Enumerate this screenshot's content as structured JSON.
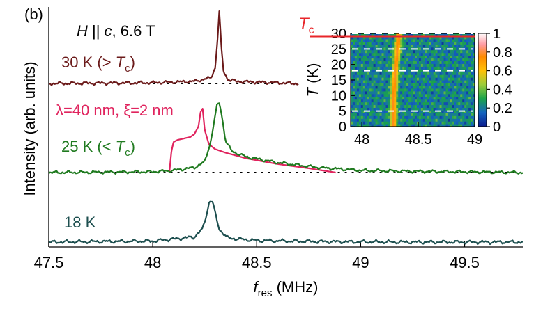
{
  "panel_label": "(b)",
  "field_note": "H || c, 6.6 T",
  "colors": {
    "trace_30K": "#6b1a1a",
    "trace_25K": "#1f7a1f",
    "trace_18K": "#1d4f4f",
    "simulation": "#e0245e",
    "tc_line": "#e8262a",
    "baseline": "#000000"
  },
  "chart_data": [
    {
      "type": "line",
      "xlabel": "f_res (MHz)",
      "xlabel_main": "f",
      "xlabel_sub": "res",
      "xlabel_unit": " (MHz)",
      "ylabel": "Intensity (arb. units)",
      "xlim": [
        47.5,
        49.78
      ],
      "xticks": [
        "47.5",
        "48",
        "48.5",
        "49",
        "49.5"
      ],
      "xtick_values": [
        47.5,
        48.0,
        48.5,
        49.0,
        49.5
      ],
      "grid": false,
      "series": [
        {
          "name": "30 K (> Tc)",
          "label_text": "30 K (> ",
          "label_sym": "T",
          "label_sub": "c",
          "label_end": ")",
          "color_key": "trace_30K",
          "x": [
            47.5,
            48.0,
            48.2,
            48.28,
            48.3,
            48.31,
            48.32,
            48.33,
            48.34,
            48.36,
            48.4,
            48.6,
            48.7
          ],
          "y": [
            0.0,
            0.01,
            0.03,
            0.08,
            0.22,
            0.55,
            1.0,
            0.5,
            0.18,
            0.06,
            0.03,
            0.01,
            0.0
          ]
        },
        {
          "name": "λ=40 nm, ξ=2 nm",
          "label_text": "λ=40 nm, ξ=2 nm",
          "color_key": "simulation",
          "x": [
            48.08,
            48.09,
            48.1,
            48.12,
            48.15,
            48.18,
            48.2,
            48.22,
            48.23,
            48.24,
            48.25,
            48.27,
            48.3,
            48.35,
            48.45,
            48.6,
            48.75,
            48.88
          ],
          "y": [
            0.0,
            0.3,
            0.43,
            0.46,
            0.48,
            0.5,
            0.54,
            0.65,
            0.85,
            0.9,
            0.6,
            0.4,
            0.33,
            0.28,
            0.2,
            0.12,
            0.06,
            0.0
          ]
        },
        {
          "name": "25 K (< Tc)",
          "label_text": "25 K (< ",
          "label_sym": "T",
          "label_sub": "c",
          "label_end": ")",
          "color_key": "trace_25K",
          "x": [
            47.5,
            48.0,
            48.1,
            48.2,
            48.25,
            48.28,
            48.3,
            48.31,
            48.32,
            48.33,
            48.35,
            48.38,
            48.45,
            48.6,
            48.8,
            49.0,
            49.2,
            49.5,
            49.78
          ],
          "y": [
            0.0,
            0.01,
            0.03,
            0.07,
            0.15,
            0.45,
            0.8,
            0.95,
            0.98,
            0.85,
            0.45,
            0.3,
            0.22,
            0.14,
            0.07,
            0.03,
            0.02,
            0.01,
            0.0
          ]
        },
        {
          "name": "18 K",
          "label_text": "18 K",
          "color_key": "trace_18K",
          "x": [
            47.5,
            48.0,
            48.2,
            48.24,
            48.26,
            48.27,
            48.28,
            48.29,
            48.3,
            48.32,
            48.36,
            48.5,
            48.8,
            49.2,
            49.78
          ],
          "y": [
            0.0,
            0.02,
            0.1,
            0.25,
            0.55,
            0.75,
            0.8,
            0.75,
            0.55,
            0.25,
            0.08,
            0.03,
            0.01,
            0.0,
            0.0
          ]
        }
      ]
    },
    {
      "type": "heatmap",
      "xlabel": "",
      "ylabel": "T (K)",
      "ylabel_sym": "T",
      "ylabel_unit": " (K)",
      "xlim": [
        47.9,
        49.0
      ],
      "ylim": [
        0,
        30
      ],
      "xticks": [
        "48",
        "48.5",
        "49"
      ],
      "xtick_values": [
        48.0,
        48.5,
        49.0
      ],
      "yticks": [
        "0",
        "5",
        "10",
        "15",
        "20",
        "25",
        "30"
      ],
      "ytick_values": [
        0,
        5,
        10,
        15,
        20,
        25,
        30
      ],
      "colorbar_ticks": [
        "0",
        "0.2",
        "0.4",
        "0.6",
        "0.8",
        "1"
      ],
      "colorbar_values": [
        0,
        0.2,
        0.4,
        0.6,
        0.8,
        1.0
      ],
      "measured_temperatures": [
        5,
        18,
        25,
        30
      ],
      "peak_center": [
        {
          "T": 0,
          "f": 48.28
        },
        {
          "T": 10,
          "f": 48.28
        },
        {
          "T": 20,
          "f": 48.3
        },
        {
          "T": 30,
          "f": 48.33
        }
      ],
      "tc_label_sym": "T",
      "tc_label_sub": "c",
      "tc_value": 29
    }
  ]
}
